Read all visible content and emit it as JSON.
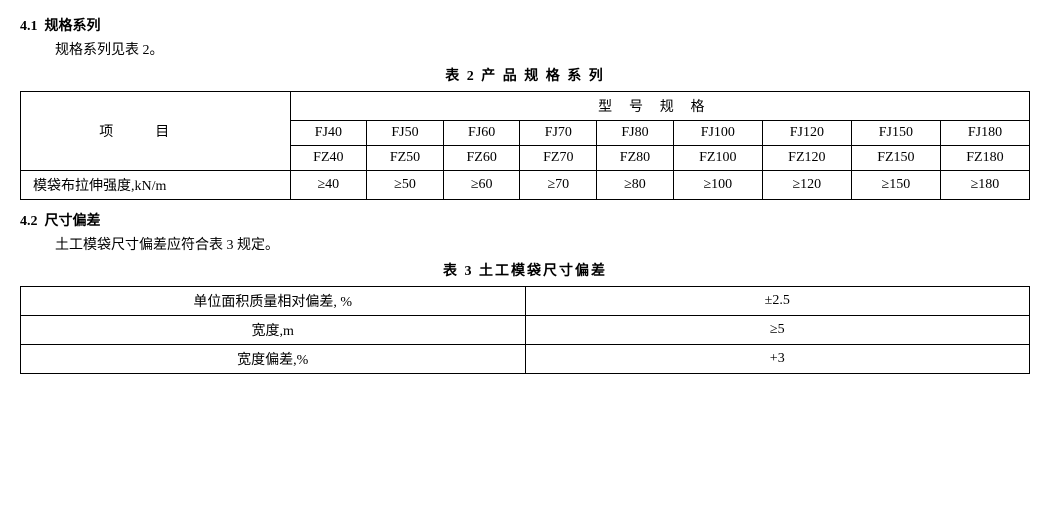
{
  "section1": {
    "number": "4.1",
    "title": "规格系列",
    "body": "规格系列见表 2。"
  },
  "table2": {
    "title": "表 2  产 品 规 格 系 列",
    "itemHeader": "项目",
    "modelHeader": "型号规格",
    "row1": [
      "FJ40",
      "FJ50",
      "FJ60",
      "FJ70",
      "FJ80",
      "FJ100",
      "FJ120",
      "FJ150",
      "FJ180"
    ],
    "row2": [
      "FZ40",
      "FZ50",
      "FZ60",
      "FZ70",
      "FZ80",
      "FZ100",
      "FZ120",
      "FZ150",
      "FZ180"
    ],
    "propLabel": "模袋布拉伸强度,kN/m",
    "propValues": [
      "≥40",
      "≥50",
      "≥60",
      "≥70",
      "≥80",
      "≥100",
      "≥120",
      "≥150",
      "≥180"
    ]
  },
  "section2": {
    "number": "4.2",
    "title": "尺寸偏差",
    "body": "土工模袋尺寸偏差应符合表 3 规定。"
  },
  "table3": {
    "title": "表 3  土工模袋尺寸偏差",
    "rows": [
      {
        "label": "单位面积质量相对偏差, %",
        "value": "±2.5"
      },
      {
        "label": "宽度,m",
        "value": "≥5"
      },
      {
        "label": "宽度偏差,%",
        "value": "+3"
      }
    ]
  }
}
